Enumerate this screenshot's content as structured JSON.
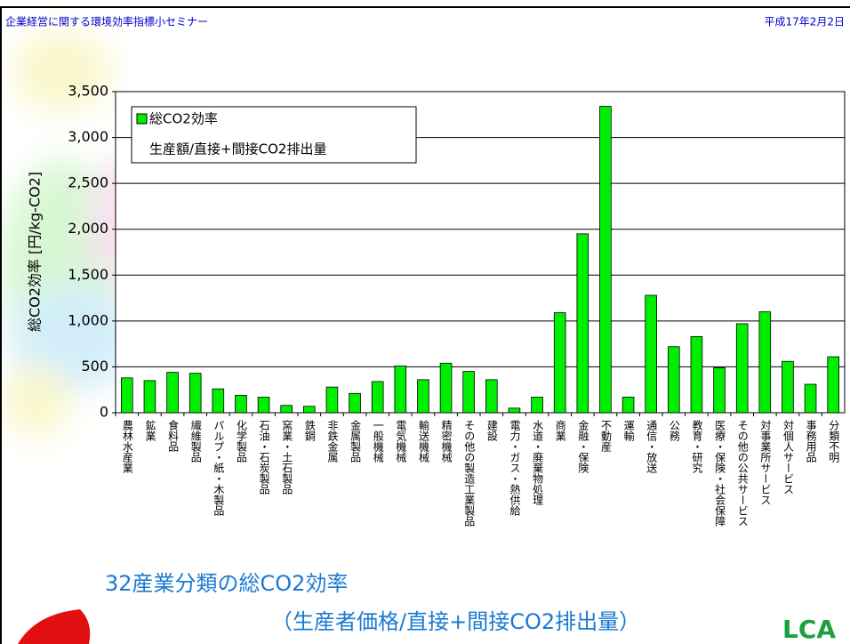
{
  "header": {
    "left": "企業経営に関する環境効率指標小セミナー",
    "right": "平成17年2月2日"
  },
  "chart_data": {
    "type": "bar",
    "ylabel": "総CO2効率 [円/kg-CO2]",
    "categories": [
      "農林水産業",
      "鉱業",
      "食料品",
      "繊維製品",
      "パルプ・紙・木製品",
      "化学製品",
      "石油・石炭製品",
      "窯業・土石製品",
      "鉄鋼",
      "非鉄金属",
      "金属製品",
      "一般機械",
      "電気機械",
      "輸送機械",
      "精密機械",
      "その他の製造工業製品",
      "建設",
      "電力・ガス・熱供給",
      "水道・廃棄物処理",
      "商業",
      "金融・保険",
      "不動産",
      "運輸",
      "通信・放送",
      "公務",
      "教育・研究",
      "医療・保険・社会保障",
      "その他の公共サービス",
      "対事業所サービス",
      "対個人サービス",
      "事務用品",
      "分類不明"
    ],
    "series": [
      {
        "name": "総CO2効率",
        "color": "#00ee00",
        "values": [
          380,
          350,
          440,
          430,
          260,
          190,
          170,
          80,
          70,
          280,
          210,
          340,
          510,
          360,
          540,
          450,
          360,
          50,
          170,
          1090,
          1950,
          3340,
          170,
          1280,
          720,
          830,
          490,
          970,
          1100,
          560,
          310,
          610
        ]
      }
    ],
    "legend_note": "生産額/直接+間接CO2排出量",
    "ylim": [
      0,
      3500
    ],
    "yticks": [
      0,
      500,
      {
        "value": 1000,
        "label": "1,000"
      },
      {
        "value": 1500,
        "label": "1,500"
      },
      {
        "value": 2000,
        "label": "2,000"
      },
      {
        "value": 2500,
        "label": "2,500"
      },
      {
        "value": 3000,
        "label": "3,000"
      },
      {
        "value": 3500,
        "label": "3,500"
      }
    ],
    "grid": true
  },
  "footer": {
    "line1": "32産業分類の総CO2効率",
    "line2": "（生産者価格/直接+間接CO2排出量）",
    "logo": "LCA"
  }
}
